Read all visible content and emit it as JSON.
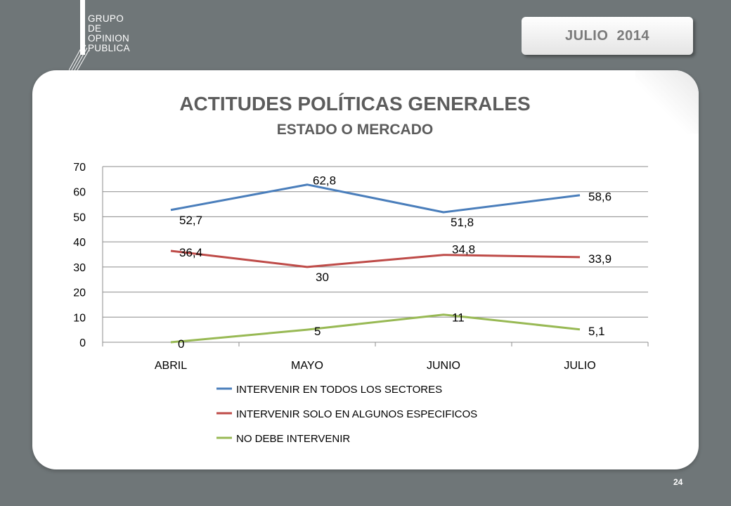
{
  "header": {
    "logo_lines": [
      "GRUPO",
      "DE",
      "OPINION",
      "PUBLICA"
    ],
    "date_label": "JULIO  2014"
  },
  "footer": {
    "page_number": "24"
  },
  "colors": {
    "background": "#6f7678",
    "series": [
      "#4a7ebb",
      "#be4b48",
      "#98b954"
    ]
  },
  "chart_data": {
    "type": "line",
    "title": "ACTITUDES POLÍTICAS GENERALES",
    "subtitle": "ESTADO O MERCADO",
    "categories": [
      "ABRIL",
      "MAYO",
      "JUNIO",
      "JULIO"
    ],
    "ylim": [
      0,
      70
    ],
    "yticks": [
      0,
      10,
      20,
      30,
      40,
      50,
      60,
      70
    ],
    "grid": true,
    "legend_position": "bottom",
    "series": [
      {
        "name": "INTERVENIR EN TODOS LOS SECTORES",
        "values": [
          52.7,
          62.8,
          51.8,
          58.6
        ],
        "labels": [
          "52,7",
          "62,8",
          "51,8",
          "58,6"
        ]
      },
      {
        "name": "INTERVENIR SOLO EN ALGUNOS ESPECIFICOS",
        "values": [
          36.4,
          30,
          34.8,
          33.9
        ],
        "labels": [
          "36,4",
          "30",
          "34,8",
          "33,9"
        ]
      },
      {
        "name": "NO DEBE INTERVENIR",
        "values": [
          0,
          5,
          11,
          5.1
        ],
        "labels": [
          "0",
          "5",
          "11",
          "5,1"
        ]
      }
    ]
  }
}
